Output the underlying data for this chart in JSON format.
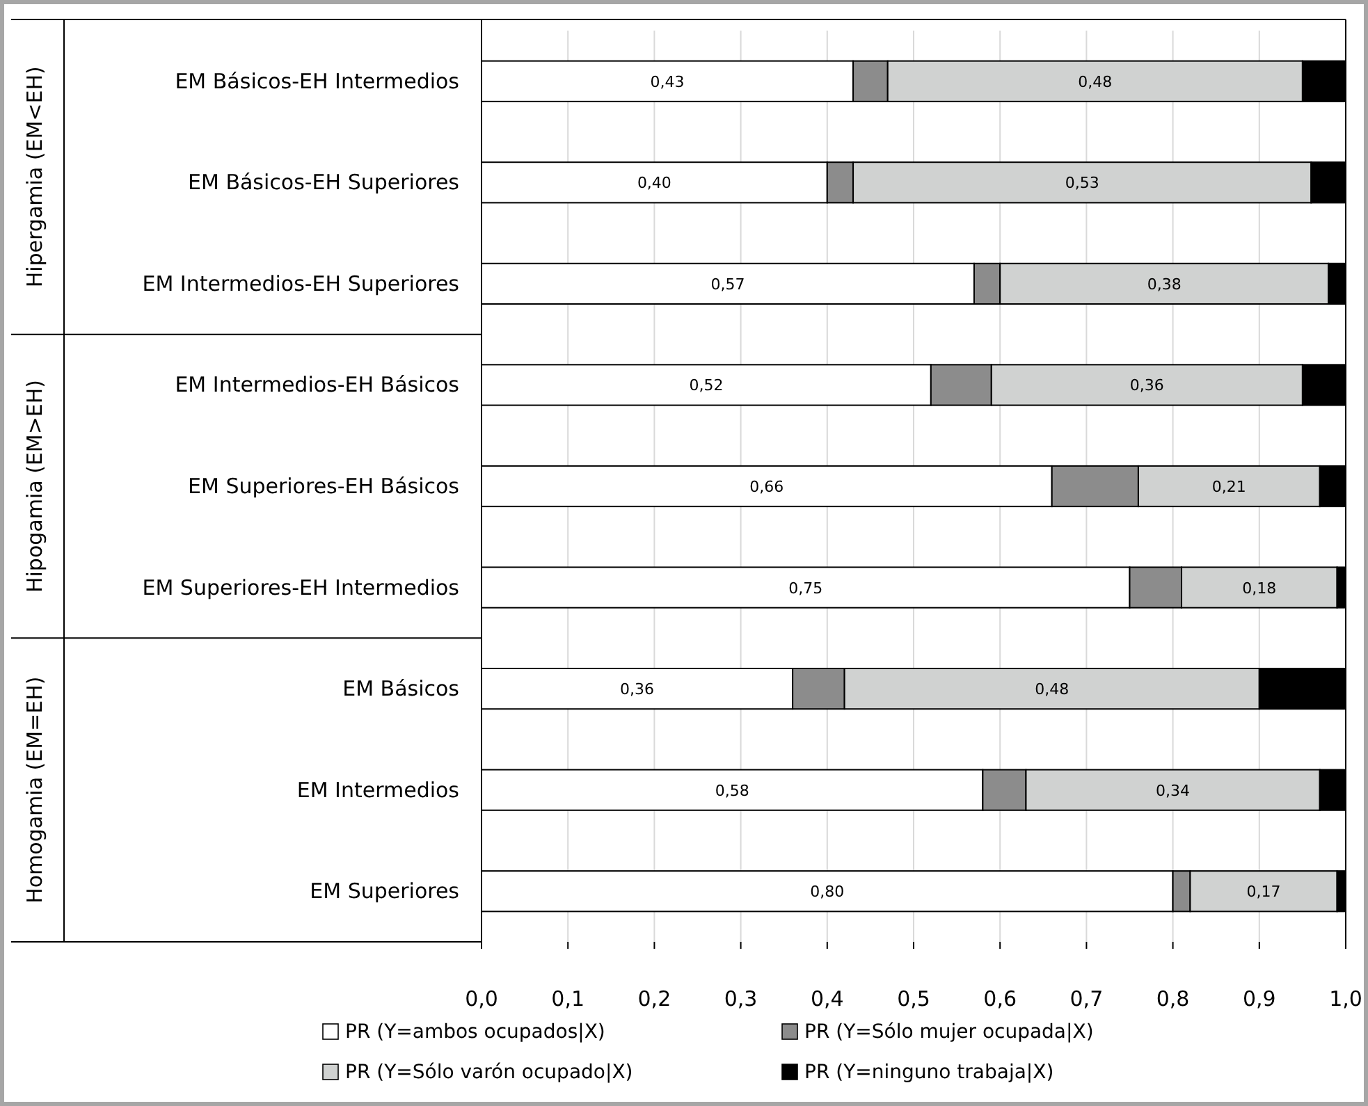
{
  "chart_data": {
    "type": "bar",
    "orientation": "horizontal",
    "stacked": true,
    "categories": [
      "EM Básicos-EH Intermedios",
      "EM Básicos-EH Superiores",
      "EM Intermedios-EH Superiores",
      "EM Intermedios-EH Básicos",
      "EM Superiores-EH Básicos",
      "EM Superiores-EH Intermedios",
      "EM Básicos",
      "EM Intermedios",
      "EM Superiores"
    ],
    "series": [
      {
        "name": "PR (Y=ambos ocupados|X)",
        "color": "#ffffff",
        "values": [
          0.43,
          0.4,
          0.57,
          0.52,
          0.66,
          0.75,
          0.36,
          0.58,
          0.8
        ],
        "value_labels": [
          "0,43",
          "0,40",
          "0,57",
          "0,52",
          "0,66",
          "0,75",
          "0,36",
          "0,58",
          "0,80"
        ]
      },
      {
        "name": "PR (Y=Sólo mujer ocupada|X)",
        "color": "#8c8c8c",
        "values": [
          0.04,
          0.03,
          0.03,
          0.07,
          0.1,
          0.06,
          0.06,
          0.05,
          0.02
        ]
      },
      {
        "name": "PR (Y=Sólo varón ocupado|X)",
        "color": "#d0d2d1",
        "values": [
          0.48,
          0.53,
          0.38,
          0.36,
          0.21,
          0.18,
          0.48,
          0.34,
          0.17
        ],
        "value_labels": [
          "0,48",
          "0,53",
          "0,38",
          "0,36",
          "0,21",
          "0,18",
          "0,48",
          "0,34",
          "0,17"
        ]
      },
      {
        "name": "PR (Y=ninguno trabaja|X)",
        "color": "#000000",
        "values": [
          0.05,
          0.04,
          0.02,
          0.05,
          0.03,
          0.01,
          0.1,
          0.03,
          0.01
        ]
      }
    ],
    "xlim": [
      0,
      1
    ],
    "xticks": [
      {
        "value": 0,
        "label": "0,0"
      },
      {
        "value": 0.1,
        "label": "0,1"
      },
      {
        "value": 0.2,
        "label": "0,2"
      },
      {
        "value": 0.3,
        "label": "0,3"
      },
      {
        "value": 0.4,
        "label": "0,4"
      },
      {
        "value": 0.5,
        "label": "0,5"
      },
      {
        "value": 0.6,
        "label": "0,6"
      },
      {
        "value": 0.7,
        "label": "0,7"
      },
      {
        "value": 0.8,
        "label": "0,8"
      },
      {
        "value": 0.9,
        "label": "0,9"
      },
      {
        "value": 1,
        "label": "1,0"
      }
    ],
    "grid": "x",
    "legend": "bottom",
    "annotations": [
      "Hipergamia (EM<EH)",
      "Hipogamia (EM>EH)",
      "Homogamia (EM=EH)"
    ]
  }
}
